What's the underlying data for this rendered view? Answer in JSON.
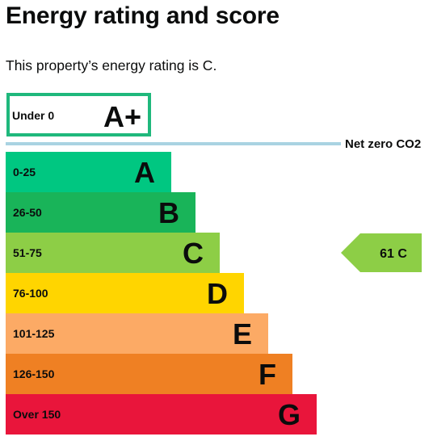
{
  "page": {
    "title": "Energy rating and score",
    "intro": "This property’s energy rating is C."
  },
  "chart_data": {
    "type": "bar",
    "categories": [
      "A+",
      "A",
      "B",
      "C",
      "D",
      "E",
      "F",
      "G"
    ],
    "bands": [
      {
        "letter": "A+",
        "range": "Under 0",
        "color": "#1fb87c",
        "outlined": true
      },
      {
        "letter": "A",
        "range": "0-25",
        "color": "#00c781"
      },
      {
        "letter": "B",
        "range": "26-50",
        "color": "#19b459"
      },
      {
        "letter": "C",
        "range": "51-75",
        "color": "#8dce46"
      },
      {
        "letter": "D",
        "range": "76-100",
        "color": "#ffd500"
      },
      {
        "letter": "E",
        "range": "101-125",
        "color": "#fcaa65"
      },
      {
        "letter": "F",
        "range": "126-150",
        "color": "#ef8023"
      },
      {
        "letter": "G",
        "range": "Over 150",
        "color": "#e9153b"
      }
    ],
    "net_zero": {
      "label": "Net zero CO2",
      "color": "#a9d3e2"
    },
    "current": {
      "score": 61,
      "letter": "C",
      "label": "61 C",
      "color": "#8dce46"
    }
  }
}
